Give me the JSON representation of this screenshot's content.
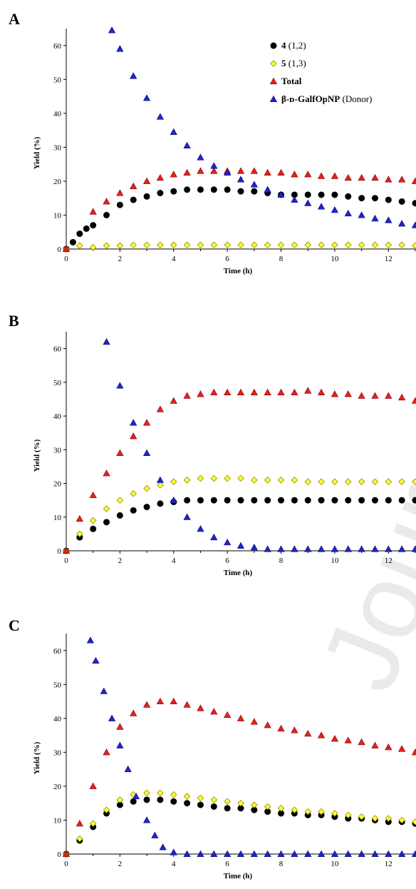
{
  "watermark": "Journal Pre-proof",
  "legend": [
    {
      "bold": "4",
      "normal": " (1,2)",
      "marker": "circle",
      "fill": "#000000",
      "stroke": "#000000"
    },
    {
      "bold": "5",
      "normal": " (1,3)",
      "marker": "diamond",
      "fill": "#ffff33",
      "stroke": "#8c8c00"
    },
    {
      "bold": "Total",
      "normal": "",
      "marker": "triangle",
      "fill": "#e8201a",
      "stroke": "#7a0000"
    },
    {
      "bold": "β-ᴅ-GalfOpNP",
      "normal": " (Donor)",
      "marker": "triangle",
      "fill": "#1f23d6",
      "stroke": "#0a0a60"
    }
  ],
  "chart_data": [
    {
      "panel": "A",
      "type": "scatter",
      "xlabel": "Time (h)",
      "ylabel": "Yield (%)",
      "xlim": [
        0,
        13
      ],
      "ylim": [
        0,
        65
      ],
      "xticks": [
        0,
        2,
        4,
        6,
        8,
        10,
        12
      ],
      "yticks": [
        0,
        10,
        20,
        30,
        40,
        50,
        60
      ],
      "series": [
        {
          "name": "4 (1,2)",
          "marker": "circle",
          "fill": "#000000",
          "stroke": "#000000",
          "x": [
            0,
            0.25,
            0.5,
            0.75,
            1,
            1.5,
            2,
            2.5,
            3,
            3.5,
            4,
            4.5,
            5,
            5.5,
            6,
            6.5,
            7,
            7.5,
            8,
            8.5,
            9,
            9.5,
            10,
            10.5,
            11,
            11.5,
            12,
            12.5,
            13
          ],
          "y": [
            0,
            2,
            4.5,
            6,
            7,
            10,
            13,
            14.5,
            15.5,
            16.5,
            17,
            17.5,
            17.5,
            17.5,
            17.5,
            17,
            17,
            16.5,
            16,
            16,
            16,
            16,
            16,
            15.5,
            15,
            15,
            14.5,
            14,
            13.5
          ]
        },
        {
          "name": "5 (1,3)",
          "marker": "diamond",
          "fill": "#ffff33",
          "stroke": "#8c8c00",
          "x": [
            0,
            0.5,
            1,
            1.5,
            2,
            2.5,
            3,
            3.5,
            4,
            4.5,
            5,
            5.5,
            6,
            6.5,
            7,
            7.5,
            8,
            8.5,
            9,
            9.5,
            10,
            10.5,
            11,
            11.5,
            12,
            12.5,
            13
          ],
          "y": [
            0,
            1,
            0.5,
            1,
            1,
            1.2,
            1.2,
            1.2,
            1.2,
            1.2,
            1.2,
            1.2,
            1.2,
            1.2,
            1.2,
            1.2,
            1.2,
            1.2,
            1.2,
            1.2,
            1.2,
            1.2,
            1.2,
            1.2,
            1.2,
            1.2,
            1
          ]
        },
        {
          "name": "Total",
          "marker": "triangle",
          "fill": "#e8201a",
          "stroke": "#7a0000",
          "x": [
            0,
            1,
            1.5,
            2,
            2.5,
            3,
            3.5,
            4,
            4.5,
            5,
            5.5,
            6,
            6.5,
            7,
            7.5,
            8,
            8.5,
            9,
            9.5,
            10,
            10.5,
            11,
            11.5,
            12,
            12.5,
            13
          ],
          "y": [
            0,
            11,
            14,
            16.5,
            18.5,
            20,
            21,
            22,
            22.5,
            23,
            23,
            23,
            23,
            23,
            22.5,
            22.5,
            22,
            22,
            21.5,
            21.5,
            21,
            21,
            21,
            20.5,
            20.5,
            20
          ]
        },
        {
          "name": "β-D-GalfOpNP (Donor)",
          "marker": "triangle",
          "fill": "#1f23d6",
          "stroke": "#0a0a60",
          "x": [
            1.7,
            2,
            2.5,
            3,
            3.5,
            4,
            4.5,
            5,
            5.5,
            6,
            6.5,
            7,
            7.5,
            8,
            8.5,
            9,
            9.5,
            10,
            10.5,
            11,
            11.5,
            12,
            12.5,
            13
          ],
          "y": [
            64.5,
            59,
            51,
            44.5,
            39,
            34.5,
            30.5,
            27,
            24.5,
            22.5,
            20.5,
            19,
            17.5,
            16,
            14.5,
            13.5,
            12.5,
            11.5,
            10.5,
            10,
            9,
            8.5,
            7.5,
            7
          ]
        }
      ]
    },
    {
      "panel": "B",
      "type": "scatter",
      "xlabel": "Time (h)",
      "ylabel": "Yield (%)",
      "xlim": [
        0,
        13
      ],
      "ylim": [
        0,
        65
      ],
      "xticks": [
        0,
        2,
        4,
        6,
        8,
        10,
        12
      ],
      "yticks": [
        0,
        10,
        20,
        30,
        40,
        50,
        60
      ],
      "series": [
        {
          "name": "4 (1,2)",
          "marker": "circle",
          "fill": "#000000",
          "stroke": "#000000",
          "x": [
            0,
            0.5,
            1,
            1.5,
            2,
            2.5,
            3,
            3.5,
            4,
            4.5,
            5,
            5.5,
            6,
            6.5,
            7,
            7.5,
            8,
            8.5,
            9,
            9.5,
            10,
            10.5,
            11,
            11.5,
            12,
            12.5,
            13
          ],
          "y": [
            0,
            4,
            6.5,
            8.5,
            10.5,
            12,
            13,
            14,
            14.5,
            15,
            15,
            15,
            15,
            15,
            15,
            15,
            15,
            15,
            15,
            15,
            15,
            15,
            15,
            15,
            15,
            15,
            15
          ]
        },
        {
          "name": "5 (1,3)",
          "marker": "diamond",
          "fill": "#ffff33",
          "stroke": "#8c8c00",
          "x": [
            0,
            0.5,
            1,
            1.5,
            2,
            2.5,
            3,
            3.5,
            4,
            4.5,
            5,
            5.5,
            6,
            6.5,
            7,
            7.5,
            8,
            8.5,
            9,
            9.5,
            10,
            10.5,
            11,
            11.5,
            12,
            12.5,
            13
          ],
          "y": [
            0,
            5,
            9,
            12.5,
            15,
            17,
            18.5,
            19.5,
            20.5,
            21,
            21.5,
            21.5,
            21.5,
            21.5,
            21,
            21,
            21,
            21,
            20.5,
            20.5,
            20.5,
            20.5,
            20.5,
            20.5,
            20.5,
            20.5,
            20.5
          ]
        },
        {
          "name": "Total",
          "marker": "triangle",
          "fill": "#e8201a",
          "stroke": "#7a0000",
          "x": [
            0,
            0.5,
            1,
            1.5,
            2,
            2.5,
            3,
            3.5,
            4,
            4.5,
            5,
            5.5,
            6,
            6.5,
            7,
            7.5,
            8,
            8.5,
            9,
            9.5,
            10,
            10.5,
            11,
            11.5,
            12,
            12.5,
            13
          ],
          "y": [
            0,
            9.5,
            16.5,
            23,
            29,
            34,
            38,
            42,
            44.5,
            46,
            46.5,
            47,
            47,
            47,
            47,
            47,
            47,
            47,
            47.5,
            47,
            46.5,
            46.5,
            46,
            46,
            46,
            45.5,
            44.5
          ]
        },
        {
          "name": "β-D-GalfOpNP (Donor)",
          "marker": "triangle",
          "fill": "#1f23d6",
          "stroke": "#0a0a60",
          "x": [
            1.5,
            2,
            2.5,
            3,
            3.5,
            4,
            4.5,
            5,
            5.5,
            6,
            6.5,
            7,
            7.5,
            8,
            8.5,
            9,
            9.5,
            10,
            10.5,
            11,
            11.5,
            12,
            12.5,
            13
          ],
          "y": [
            62,
            49,
            38,
            29,
            21,
            15,
            10,
            6.5,
            4,
            2.5,
            1.5,
            1,
            0.5,
            0.5,
            0.5,
            0.5,
            0.5,
            0.5,
            0.5,
            0.5,
            0.5,
            0.5,
            0.5,
            0.5
          ]
        }
      ]
    },
    {
      "panel": "C",
      "type": "scatter",
      "xlabel": "Time (h)",
      "ylabel": "Yield (%)",
      "xlim": [
        0,
        13
      ],
      "ylim": [
        0,
        65
      ],
      "xticks": [
        0,
        2,
        4,
        6,
        8,
        10,
        12
      ],
      "yticks": [
        0,
        10,
        20,
        30,
        40,
        50,
        60
      ],
      "series": [
        {
          "name": "4 (1,2)",
          "marker": "circle",
          "fill": "#000000",
          "stroke": "#000000",
          "x": [
            0,
            0.5,
            1,
            1.5,
            2,
            2.5,
            3,
            3.5,
            4,
            4.5,
            5,
            5.5,
            6,
            6.5,
            7,
            7.5,
            8,
            8.5,
            9,
            9.5,
            10,
            10.5,
            11,
            11.5,
            12,
            12.5,
            13
          ],
          "y": [
            0,
            4,
            8,
            12,
            14.5,
            15.5,
            16,
            16,
            15.5,
            15,
            14.5,
            14,
            13.5,
            13.5,
            13,
            12.5,
            12,
            12,
            11.5,
            11.5,
            11,
            10.5,
            10.5,
            10,
            9.5,
            9.5,
            9
          ]
        },
        {
          "name": "5 (1,3)",
          "marker": "diamond",
          "fill": "#ffff33",
          "stroke": "#8c8c00",
          "x": [
            0,
            0.5,
            1,
            1.5,
            2,
            2.5,
            3,
            3.5,
            4,
            4.5,
            5,
            5.5,
            6,
            6.5,
            7,
            7.5,
            8,
            8.5,
            9,
            9.5,
            10,
            10.5,
            11,
            11.5,
            12,
            12.5,
            13
          ],
          "y": [
            0,
            4.5,
            9,
            13,
            16,
            17.5,
            18,
            18,
            17.5,
            17,
            16.5,
            16,
            15.5,
            15,
            14.5,
            14,
            13.5,
            13,
            12.5,
            12.5,
            12,
            11.5,
            11,
            10.5,
            10.5,
            10,
            9.5
          ]
        },
        {
          "name": "Total",
          "marker": "triangle",
          "fill": "#e8201a",
          "stroke": "#7a0000",
          "x": [
            0,
            0.5,
            1,
            1.5,
            2,
            2.5,
            3,
            3.5,
            4,
            4.5,
            5,
            5.5,
            6,
            6.5,
            7,
            7.5,
            8,
            8.5,
            9,
            9.5,
            10,
            10.5,
            11,
            11.5,
            12,
            12.5,
            13
          ],
          "y": [
            0,
            9,
            20,
            30,
            37.5,
            41.5,
            44,
            45,
            45,
            44,
            43,
            42,
            41,
            40,
            39,
            38,
            37,
            36.5,
            35.5,
            35,
            34,
            33.5,
            33,
            32,
            31.5,
            31,
            30
          ]
        },
        {
          "name": "β-D-GalfOpNP (Donor)",
          "marker": "triangle",
          "fill": "#1f23d6",
          "stroke": "#0a0a60",
          "x": [
            0.9,
            1.1,
            1.4,
            1.7,
            2,
            2.3,
            2.6,
            3,
            3.3,
            3.6,
            4,
            4.5,
            5,
            5.5,
            6,
            6.5,
            7,
            7.5,
            8,
            8.5,
            9,
            9.5,
            10,
            10.5,
            11,
            11.5,
            12,
            12.5,
            13
          ],
          "y": [
            63,
            57,
            48,
            40,
            32,
            25,
            17,
            10,
            5.5,
            2,
            0.5,
            0,
            0,
            0,
            0,
            0,
            0,
            0,
            0,
            0,
            0,
            0,
            0,
            0,
            0,
            0,
            0,
            0,
            0
          ]
        }
      ]
    }
  ]
}
